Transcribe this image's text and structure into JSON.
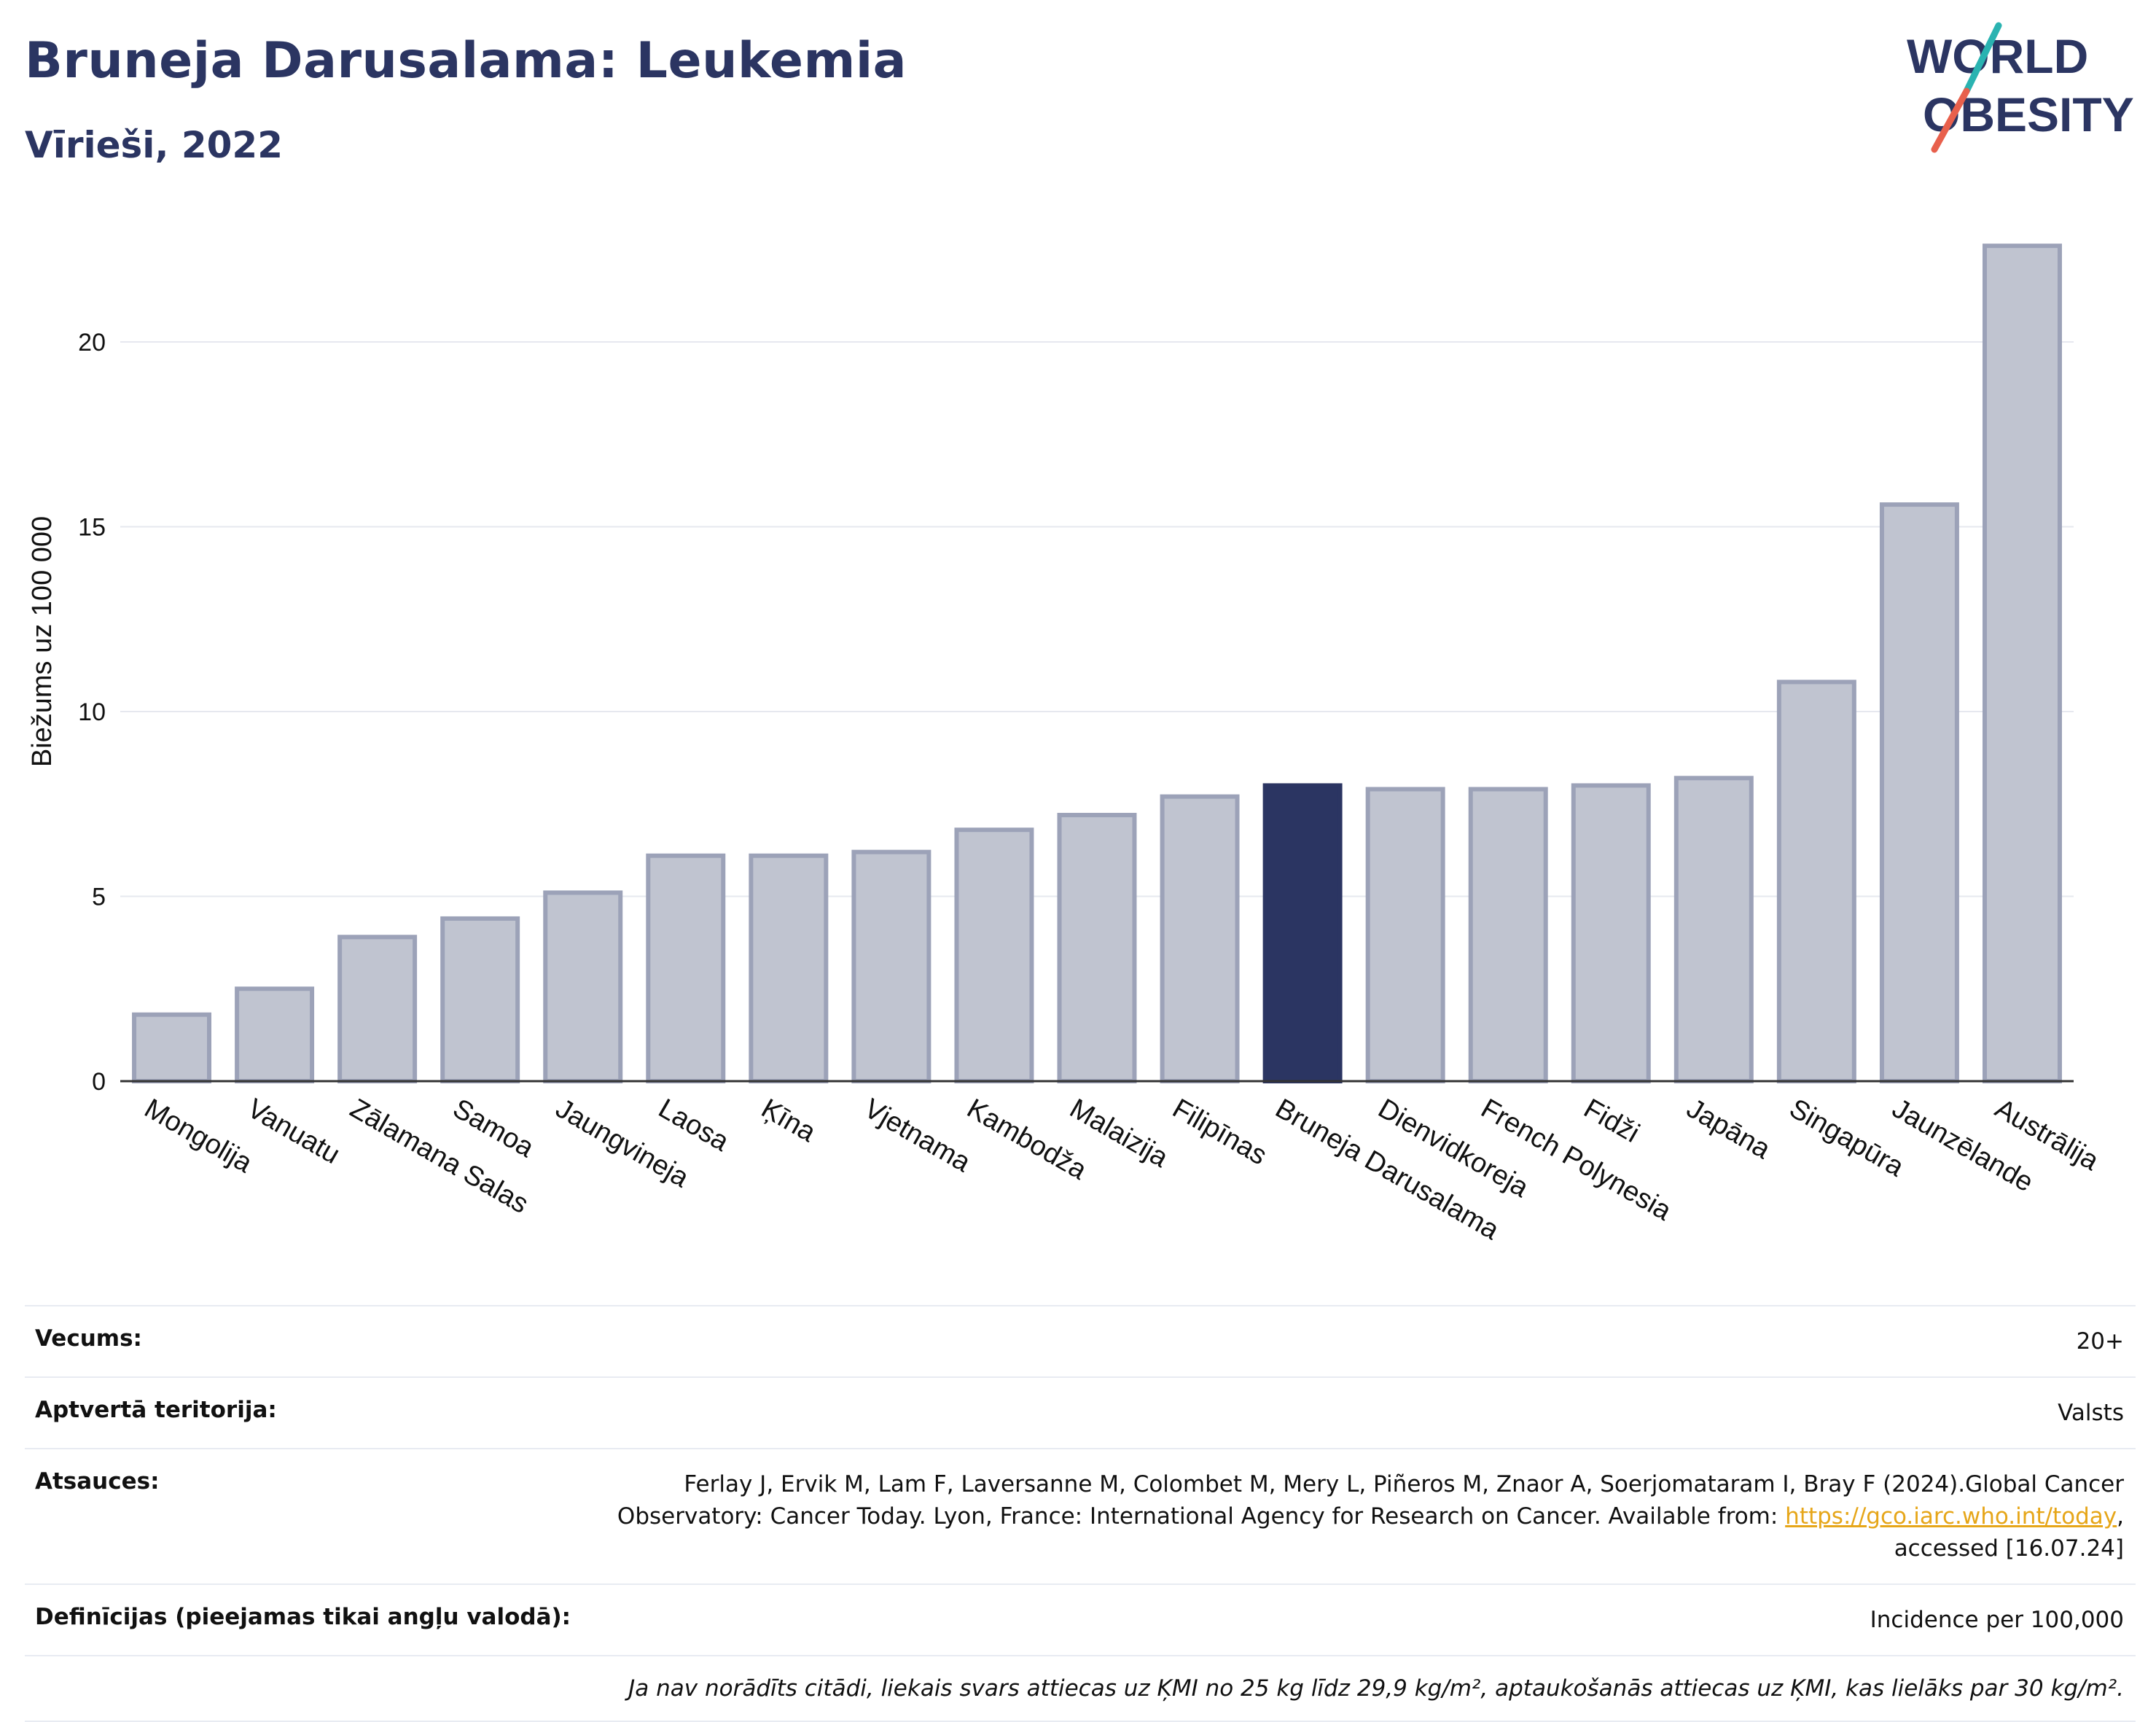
{
  "header": {
    "title": "Bruneja Darusalama: Leukemia",
    "subtitle": "Vīrieši, 2022"
  },
  "logo": {
    "line1": "WORLD",
    "line2": "OBESITY",
    "accent_colors": [
      "#2ab3b1",
      "#e8604c"
    ]
  },
  "chart_data": {
    "type": "bar",
    "ylabel": "Biežums uz 100 000",
    "ylim": [
      0,
      23
    ],
    "yticks": [
      0,
      5,
      10,
      15,
      20
    ],
    "grid": true,
    "highlight": "Bruneja Darusalama",
    "colors": {
      "bar": "#c0c4d0",
      "bar_border": "#9ca2b8",
      "highlight": "#2b3562"
    },
    "categories": [
      "Mongolija",
      "Vanuatu",
      "Zālamana Salas",
      "Samoa",
      "Jaungvineja",
      "Laosa",
      "Ķīna",
      "Vjetnama",
      "Kambodža",
      "Malaizija",
      "Filipīnas",
      "Bruneja Darusalama",
      "Dienvidkoreja",
      "French Polynesia",
      "Fidži",
      "Japāna",
      "Singapūra",
      "Jaunzēlande",
      "Austrālija"
    ],
    "values": [
      1.8,
      2.5,
      3.9,
      4.4,
      5.1,
      6.1,
      6.1,
      6.2,
      6.8,
      7.2,
      7.7,
      8.0,
      7.9,
      7.9,
      8.0,
      8.2,
      10.8,
      15.6,
      22.6
    ]
  },
  "info": {
    "age_label": "Vecums:",
    "age_value": "20+",
    "coverage_label": "Aptvertā teritorija:",
    "coverage_value": "Valsts",
    "references_label": "Atsauces:",
    "references_line1": "Ferlay J, Ervik M, Lam F, Laversanne M, Colombet M, Mery L, Piñeros M, Znaor A, Soerjomataram I, Bray F (2024).Global Cancer",
    "references_line2_pre": "Observatory: Cancer Today. Lyon, France: International Agency for Research on Cancer. Available from: ",
    "references_link": "https://gco.iarc.who.int/today",
    "references_line2_post": ",",
    "references_line3": "accessed [16.07.24]",
    "definitions_label": "Definīcijas (pieejamas tikai angļu valodā):",
    "definitions_value": "Incidence per 100,000",
    "note": "Ja nav norādīts citādi, liekais svars attiecas uz ĶMI no 25 kg līdz 29,9 kg/m², aptaukošanās attiecas uz ĶMI, kas lielāks par 30 kg/m²."
  }
}
